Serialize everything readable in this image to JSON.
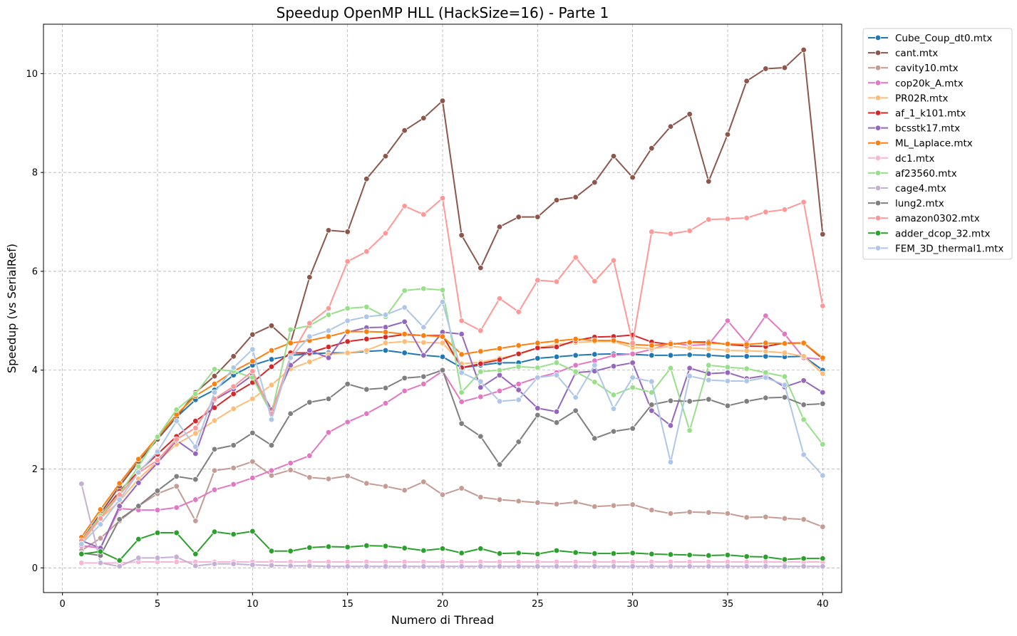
{
  "chart_data": {
    "type": "line",
    "title": "Speedup OpenMP HLL (HackSize=16) - Parte 1",
    "xlabel": "Numero di Thread",
    "ylabel": "Speedup (vs SerialRef)",
    "xlim": [
      -1,
      41
    ],
    "ylim": [
      -0.5,
      11.0
    ],
    "xticks": [
      0,
      5,
      10,
      15,
      20,
      25,
      30,
      35,
      40
    ],
    "yticks": [
      0,
      2,
      4,
      6,
      8,
      10
    ],
    "grid": true,
    "legend_position": "outside top-right",
    "x": [
      1,
      2,
      3,
      4,
      5,
      6,
      7,
      8,
      9,
      10,
      11,
      12,
      13,
      14,
      15,
      16,
      17,
      18,
      19,
      20,
      21,
      22,
      23,
      24,
      25,
      26,
      27,
      28,
      29,
      30,
      31,
      32,
      33,
      34,
      35,
      36,
      37,
      38,
      39,
      40
    ],
    "series": [
      {
        "name": "Cube_Coup_dt0.mtx",
        "color": "#1f77b4",
        "values": [
          0.55,
          1.1,
          1.65,
          2.15,
          2.6,
          3.05,
          3.4,
          3.6,
          3.9,
          4.1,
          4.22,
          4.3,
          4.33,
          4.35,
          4.35,
          4.38,
          4.4,
          4.35,
          4.3,
          4.27,
          4.05,
          4.1,
          4.15,
          4.15,
          4.24,
          4.27,
          4.3,
          4.32,
          4.33,
          4.32,
          4.3,
          4.3,
          4.31,
          4.3,
          4.28,
          4.28,
          4.28,
          4.27,
          4.28,
          4.0
        ]
      },
      {
        "name": "cant.mtx",
        "color": "#8c564b",
        "values": [
          0.55,
          1.1,
          1.65,
          2.15,
          2.6,
          3.05,
          3.55,
          3.88,
          4.28,
          4.72,
          4.9,
          4.55,
          5.88,
          6.83,
          6.8,
          7.87,
          8.33,
          8.85,
          9.1,
          9.45,
          6.73,
          6.07,
          6.9,
          7.1,
          7.1,
          7.44,
          7.5,
          7.8,
          8.33,
          7.9,
          8.49,
          8.93,
          9.18,
          7.82,
          8.77,
          9.85,
          10.1,
          10.12,
          10.48,
          6.75
        ]
      },
      {
        "name": "cavity10.mtx",
        "color": "#c49c94",
        "values": [
          0.35,
          0.6,
          0.95,
          1.25,
          1.5,
          1.65,
          0.95,
          1.97,
          2.02,
          2.15,
          1.87,
          1.98,
          1.83,
          1.8,
          1.86,
          1.71,
          1.65,
          1.57,
          1.74,
          1.48,
          1.61,
          1.43,
          1.38,
          1.35,
          1.32,
          1.29,
          1.33,
          1.24,
          1.26,
          1.28,
          1.17,
          1.1,
          1.13,
          1.12,
          1.1,
          1.02,
          1.03,
          1.0,
          0.98,
          0.83
        ]
      },
      {
        "name": "cop20k_A.mtx",
        "color": "#e377c2",
        "values": [
          0.45,
          0.4,
          1.2,
          1.17,
          1.17,
          1.22,
          1.38,
          1.58,
          1.69,
          1.82,
          1.97,
          2.12,
          2.27,
          2.74,
          2.95,
          3.12,
          3.33,
          3.58,
          3.72,
          3.98,
          3.36,
          3.46,
          3.58,
          3.72,
          3.85,
          3.95,
          4.1,
          4.19,
          4.3,
          4.33,
          4.42,
          4.55,
          4.5,
          4.52,
          5.0,
          4.55,
          5.1,
          4.73,
          4.25,
          4.22
        ]
      },
      {
        "name": "PR02R.mtx",
        "color": "#ffbb78",
        "values": [
          0.5,
          1.0,
          1.35,
          1.8,
          2.15,
          2.5,
          2.72,
          2.98,
          3.22,
          3.42,
          3.7,
          4.03,
          4.17,
          4.32,
          4.35,
          4.4,
          4.55,
          4.58,
          4.56,
          4.55,
          4.13,
          4.16,
          4.24,
          4.32,
          4.45,
          4.52,
          4.56,
          4.58,
          4.58,
          4.46,
          4.44,
          4.48,
          4.45,
          4.43,
          4.4,
          4.39,
          4.38,
          4.35,
          4.28,
          3.93
        ]
      },
      {
        "name": "af_1_k101.mtx",
        "color": "#d62728",
        "values": [
          0.55,
          1.05,
          1.55,
          1.95,
          2.3,
          2.66,
          2.97,
          3.24,
          3.52,
          3.75,
          4.07,
          4.35,
          4.35,
          4.47,
          4.58,
          4.63,
          4.67,
          4.72,
          4.7,
          4.7,
          4.05,
          4.13,
          4.21,
          4.33,
          4.45,
          4.47,
          4.6,
          4.67,
          4.68,
          4.71,
          4.57,
          4.52,
          4.57,
          4.57,
          4.52,
          4.49,
          4.48,
          4.55,
          4.55,
          4.23
        ]
      },
      {
        "name": "bcsstk17.mtx",
        "color": "#9467bd",
        "values": [
          0.55,
          0.4,
          1.25,
          1.72,
          2.12,
          2.58,
          2.31,
          3.4,
          3.62,
          3.9,
          3.2,
          4.1,
          4.4,
          4.25,
          4.77,
          4.86,
          4.87,
          4.98,
          4.3,
          4.77,
          4.73,
          3.65,
          3.9,
          3.6,
          3.23,
          3.16,
          3.95,
          3.98,
          4.08,
          4.15,
          3.18,
          2.88,
          4.04,
          3.93,
          3.95,
          3.83,
          3.89,
          3.66,
          3.79,
          3.55
        ]
      },
      {
        "name": "ML_Laplace.mtx",
        "color": "#ff7f0e",
        "values": [
          0.62,
          1.18,
          1.71,
          2.2,
          2.65,
          3.1,
          3.48,
          3.72,
          3.98,
          4.18,
          4.4,
          4.55,
          4.6,
          4.68,
          4.78,
          4.78,
          4.77,
          4.73,
          4.7,
          4.68,
          4.32,
          4.38,
          4.44,
          4.5,
          4.55,
          4.59,
          4.63,
          4.6,
          4.6,
          4.52,
          4.5,
          4.53,
          4.56,
          4.55,
          4.53,
          4.52,
          4.55,
          4.54,
          4.55,
          4.25
        ]
      },
      {
        "name": "dc1.mtx",
        "color": "#f7b6d2",
        "values": [
          0.1,
          0.1,
          0.1,
          0.12,
          0.12,
          0.12,
          0.12,
          0.12,
          0.12,
          0.12,
          0.12,
          0.12,
          0.12,
          0.12,
          0.12,
          0.12,
          0.12,
          0.12,
          0.12,
          0.12,
          0.12,
          0.12,
          0.12,
          0.12,
          0.12,
          0.12,
          0.12,
          0.12,
          0.12,
          0.12,
          0.12,
          0.12,
          0.12,
          0.12,
          0.12,
          0.12,
          0.12,
          0.12,
          0.12,
          0.12
        ]
      },
      {
        "name": "af23560.mtx",
        "color": "#98df8a",
        "values": [
          0.55,
          1.05,
          1.5,
          2.05,
          2.65,
          3.2,
          3.52,
          4.02,
          3.98,
          3.85,
          3.12,
          4.82,
          4.9,
          5.12,
          5.25,
          5.28,
          5.08,
          5.61,
          5.65,
          5.62,
          3.55,
          3.97,
          4.0,
          4.07,
          4.05,
          4.15,
          3.97,
          3.76,
          3.5,
          3.65,
          3.55,
          4.04,
          2.78,
          4.1,
          4.06,
          4.03,
          3.95,
          3.87,
          3.0,
          2.5
        ]
      },
      {
        "name": "cage4.mtx",
        "color": "#c5b0d5",
        "values": [
          1.7,
          0.1,
          0.03,
          0.2,
          0.2,
          0.22,
          0.04,
          0.08,
          0.08,
          0.06,
          0.05,
          0.04,
          0.04,
          0.03,
          0.03,
          0.03,
          0.03,
          0.03,
          0.03,
          0.03,
          0.03,
          0.03,
          0.03,
          0.03,
          0.03,
          0.03,
          0.03,
          0.03,
          0.03,
          0.03,
          0.03,
          0.03,
          0.03,
          0.03,
          0.03,
          0.03,
          0.03,
          0.03,
          0.03,
          0.03
        ]
      },
      {
        "name": "lung2.mtx",
        "color": "#7f7f7f",
        "values": [
          0.3,
          0.25,
          0.98,
          1.25,
          1.56,
          1.85,
          1.79,
          2.4,
          2.48,
          2.73,
          2.48,
          3.12,
          3.35,
          3.42,
          3.72,
          3.61,
          3.64,
          3.84,
          3.87,
          4.0,
          2.92,
          2.66,
          2.09,
          2.55,
          3.09,
          2.94,
          3.18,
          2.62,
          2.76,
          2.82,
          3.3,
          3.38,
          3.37,
          3.41,
          3.28,
          3.37,
          3.44,
          3.45,
          3.3,
          3.32
        ]
      },
      {
        "name": "amazon0302.mtx",
        "color": "#ff9896",
        "values": [
          0.55,
          1.0,
          1.48,
          1.92,
          2.18,
          2.6,
          2.83,
          3.42,
          3.67,
          3.98,
          3.12,
          4.28,
          4.95,
          5.25,
          6.2,
          6.4,
          6.77,
          7.32,
          7.15,
          7.48,
          5.0,
          4.8,
          5.45,
          5.18,
          5.82,
          5.79,
          6.28,
          5.8,
          6.22,
          4.55,
          6.8,
          6.76,
          6.82,
          7.05,
          7.06,
          7.08,
          7.2,
          7.25,
          7.4,
          5.3
        ]
      },
      {
        "name": "adder_dcop_32.mtx",
        "color": "#2ca02c",
        "values": [
          0.28,
          0.33,
          0.15,
          0.58,
          0.71,
          0.71,
          0.28,
          0.73,
          0.68,
          0.74,
          0.34,
          0.34,
          0.41,
          0.43,
          0.42,
          0.45,
          0.44,
          0.4,
          0.35,
          0.39,
          0.3,
          0.39,
          0.29,
          0.3,
          0.28,
          0.35,
          0.31,
          0.29,
          0.29,
          0.3,
          0.28,
          0.27,
          0.26,
          0.25,
          0.26,
          0.23,
          0.22,
          0.17,
          0.19,
          0.19
        ]
      },
      {
        "name": "FEM_3D_thermal1.mtx",
        "color": "#aec7e8",
        "values": [
          0.48,
          0.88,
          1.38,
          1.93,
          2.35,
          2.97,
          2.45,
          3.55,
          4.05,
          4.42,
          3.0,
          4.25,
          4.68,
          4.8,
          5.0,
          5.08,
          5.12,
          5.27,
          4.87,
          5.38,
          3.95,
          3.77,
          3.37,
          3.4,
          3.85,
          3.9,
          3.45,
          4.1,
          3.22,
          3.85,
          3.77,
          2.14,
          3.88,
          3.8,
          3.78,
          3.78,
          3.85,
          3.7,
          2.29,
          1.87
        ]
      }
    ]
  }
}
